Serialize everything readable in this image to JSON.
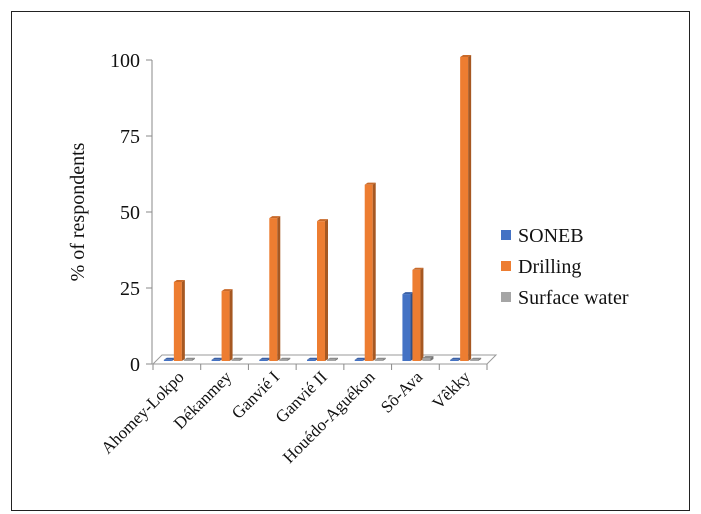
{
  "chart_data": {
    "type": "bar",
    "ylabel": "% of respondents",
    "xlabel": "",
    "ylim": [
      0,
      100
    ],
    "yticks": [
      0,
      25,
      50,
      75,
      100
    ],
    "grid": false,
    "legend_position": "right",
    "categories": [
      "Ahomey-Lokpo",
      "Dékanmey",
      "Ganvié I",
      "Ganvié II",
      "Houédo-Aguékon",
      "Sô-Ava",
      "Vêkky"
    ],
    "series": [
      {
        "name": "SONEB",
        "color": "#4472C4",
        "values": [
          0,
          0,
          0,
          0,
          0,
          22,
          0
        ]
      },
      {
        "name": "Drilling",
        "color": "#ED7D31",
        "values": [
          26,
          23,
          47,
          46,
          58,
          30,
          100
        ]
      },
      {
        "name": "Surface water",
        "color": "#A5A5A5",
        "values": [
          0,
          0,
          0,
          0,
          0,
          1,
          0
        ]
      }
    ]
  }
}
